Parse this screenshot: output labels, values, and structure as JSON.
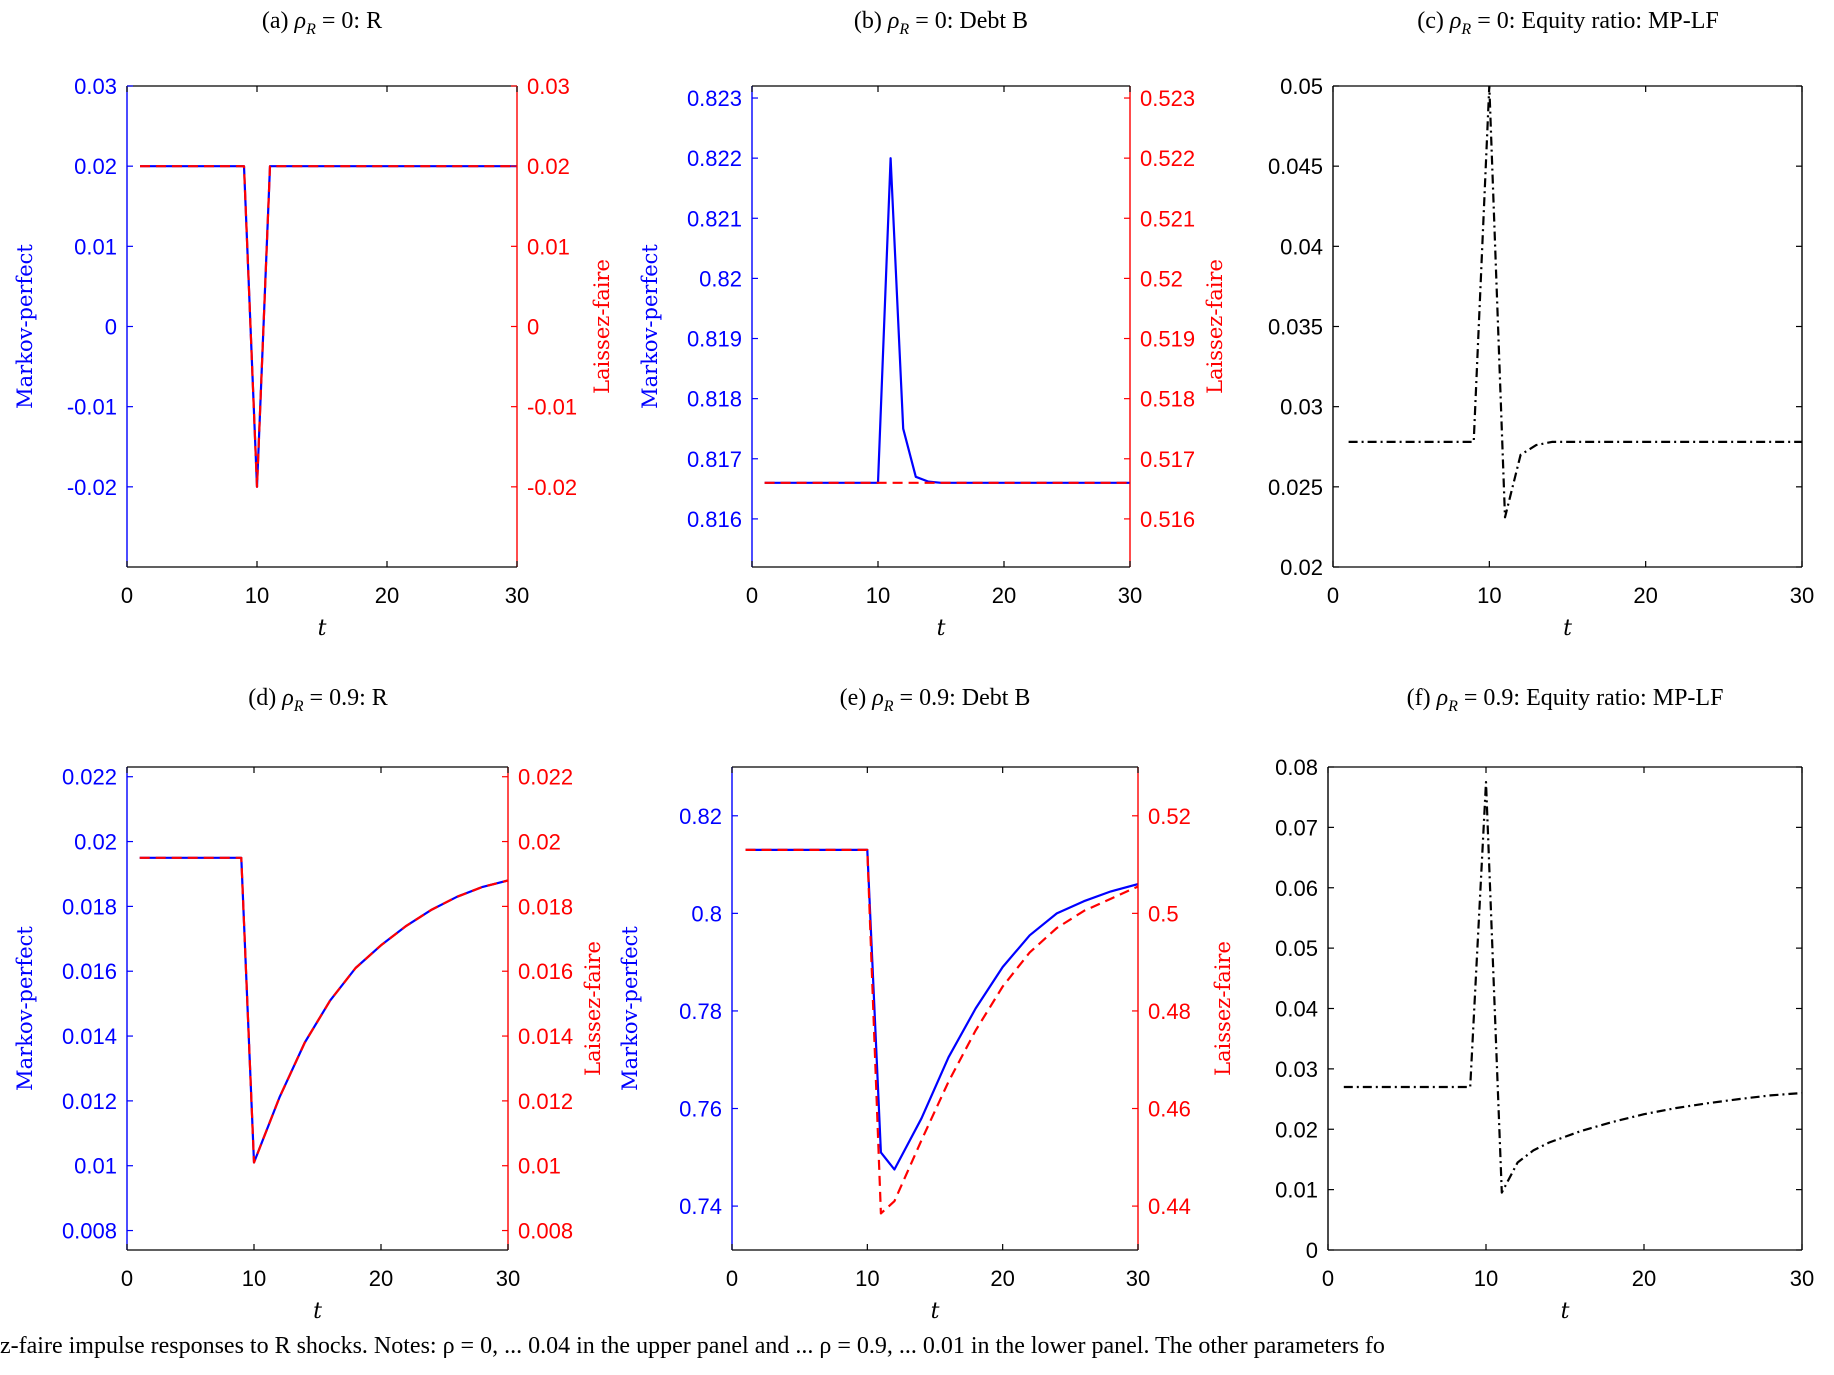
{
  "figure": {
    "caption_fragment": "z-faire impulse responses to R shocks. Notes: ρ = 0, ... 0.04 in the upper panel and ... ρ = 0.9, ... 0.01 in the lower panel. The other parameters fo"
  },
  "colors": {
    "markov_perfect": "#0000ff",
    "laissez_faire": "#ff0000",
    "difference": "#000000",
    "axis": "#000000"
  },
  "chart_data": [
    {
      "panel": "a",
      "type": "line",
      "title": "(a) ρR = 0: R",
      "xlabel": "t",
      "ylabel_left": "Markov-perfect",
      "ylabel_right": "Laissez-faire",
      "xlim": [
        0,
        30
      ],
      "ylim_left": [
        -0.03,
        0.03
      ],
      "ylim_right": [
        -0.03,
        0.03
      ],
      "xticks": [
        0,
        10,
        20,
        30
      ],
      "yticks_left": [
        -0.02,
        -0.01,
        0,
        0.01,
        0.02,
        0.03
      ],
      "yticks_left_labels": [
        "-0.02",
        "-0.01",
        "0",
        "0.01",
        "0.02",
        "0.03"
      ],
      "yticks_right": [
        -0.02,
        -0.01,
        0,
        0.01,
        0.02,
        0.03
      ],
      "yticks_right_labels": [
        "-0.02",
        "-0.01",
        "0",
        "0.01",
        "0.02",
        "0.03"
      ],
      "series": [
        {
          "axis": "left",
          "style": "solid",
          "color": "#0000ff",
          "x": [
            1,
            9,
            10,
            11,
            30
          ],
          "y": [
            0.02,
            0.02,
            -0.02,
            0.02,
            0.02
          ]
        },
        {
          "axis": "right",
          "style": "dashed",
          "color": "#ff0000",
          "x": [
            1,
            9,
            10,
            11,
            30
          ],
          "y": [
            0.02,
            0.02,
            -0.02,
            0.02,
            0.02
          ]
        }
      ]
    },
    {
      "panel": "b",
      "type": "line",
      "title": "(b) ρR = 0: Debt B",
      "xlabel": "t",
      "ylabel_left": "Markov-perfect",
      "ylabel_right": "Laissez-faire",
      "xlim": [
        0,
        30
      ],
      "ylim_left": [
        0.8152,
        0.8232
      ],
      "ylim_right": [
        0.5152,
        0.5232
      ],
      "xticks": [
        0,
        10,
        20,
        30
      ],
      "yticks_left": [
        0.816,
        0.817,
        0.818,
        0.819,
        0.82,
        0.821,
        0.822,
        0.823
      ],
      "yticks_left_labels": [
        "0.816",
        "0.817",
        "0.818",
        "0.819",
        "0.82",
        "0.821",
        "0.822",
        "0.823"
      ],
      "yticks_right": [
        0.516,
        0.517,
        0.518,
        0.519,
        0.52,
        0.521,
        0.522,
        0.523
      ],
      "yticks_right_labels": [
        "0.516",
        "0.517",
        "0.518",
        "0.519",
        "0.52",
        "0.521",
        "0.522",
        "0.523"
      ],
      "series": [
        {
          "axis": "left",
          "style": "solid",
          "color": "#0000ff",
          "x": [
            1,
            10,
            11,
            12,
            13,
            14,
            15,
            30
          ],
          "y": [
            0.8166,
            0.8166,
            0.822,
            0.8175,
            0.8167,
            0.81662,
            0.8166,
            0.8166
          ]
        },
        {
          "axis": "right",
          "style": "dashed",
          "color": "#ff0000",
          "x": [
            1,
            30
          ],
          "y": [
            0.5166,
            0.5166
          ]
        }
      ]
    },
    {
      "panel": "c",
      "type": "line",
      "title": "(c) ρR = 0: Equity ratio: MP-LF",
      "xlabel": "t",
      "ylabel_left": "",
      "ylabel_right": "",
      "xlim": [
        0,
        30
      ],
      "ylim_left": [
        0.02,
        0.05
      ],
      "xticks": [
        0,
        10,
        20,
        30
      ],
      "yticks_left": [
        0.02,
        0.025,
        0.03,
        0.035,
        0.04,
        0.045,
        0.05
      ],
      "yticks_left_labels": [
        "0.02",
        "0.025",
        "0.03",
        "0.035",
        "0.04",
        "0.045",
        "0.05"
      ],
      "series": [
        {
          "axis": "left",
          "style": "dashdot",
          "color": "#000000",
          "x": [
            1,
            9,
            10,
            11,
            12,
            13,
            14,
            30
          ],
          "y": [
            0.0278,
            0.0278,
            0.05,
            0.0231,
            0.027,
            0.0276,
            0.0278,
            0.0278
          ]
        }
      ]
    },
    {
      "panel": "d",
      "type": "line",
      "title": "(d) ρR = 0.9: R",
      "xlabel": "t",
      "ylabel_left": "Markov-perfect",
      "ylabel_right": "Laissez-faire",
      "xlim": [
        0,
        30
      ],
      "ylim_left": [
        0.0074,
        0.0223
      ],
      "ylim_right": [
        0.0074,
        0.0223
      ],
      "xticks": [
        0,
        10,
        20,
        30
      ],
      "yticks_left": [
        0.008,
        0.01,
        0.012,
        0.014,
        0.016,
        0.018,
        0.02,
        0.022
      ],
      "yticks_left_labels": [
        "0.008",
        "0.01",
        "0.012",
        "0.014",
        "0.016",
        "0.018",
        "0.02",
        "0.022"
      ],
      "yticks_right": [
        0.008,
        0.01,
        0.012,
        0.014,
        0.016,
        0.018,
        0.02,
        0.022
      ],
      "yticks_right_labels": [
        "0.008",
        "0.01",
        "0.012",
        "0.014",
        "0.016",
        "0.018",
        "0.02",
        "0.022"
      ],
      "series": [
        {
          "axis": "left",
          "style": "solid",
          "color": "#0000ff",
          "x": [
            1,
            9,
            10,
            12,
            14,
            16,
            18,
            20,
            22,
            24,
            26,
            28,
            30
          ],
          "y": [
            0.0195,
            0.0195,
            0.0101,
            0.0121,
            0.0138,
            0.0151,
            0.0161,
            0.0168,
            0.0174,
            0.0179,
            0.0183,
            0.0186,
            0.0188
          ]
        },
        {
          "axis": "right",
          "style": "dashed",
          "color": "#ff0000",
          "x": [
            1,
            9,
            10,
            12,
            14,
            16,
            18,
            20,
            22,
            24,
            26,
            28,
            30
          ],
          "y": [
            0.0195,
            0.0195,
            0.0101,
            0.0121,
            0.0138,
            0.0151,
            0.0161,
            0.0168,
            0.0174,
            0.0179,
            0.0183,
            0.0186,
            0.0188
          ]
        }
      ]
    },
    {
      "panel": "e",
      "type": "line",
      "title": "(e) ρR = 0.9: Debt B",
      "xlabel": "t",
      "ylabel_left": "Markov-perfect",
      "ylabel_right": "Laissez-faire",
      "xlim": [
        0,
        30
      ],
      "ylim_left": [
        0.731,
        0.83
      ],
      "ylim_right": [
        0.431,
        0.53
      ],
      "xticks": [
        0,
        10,
        20,
        30
      ],
      "yticks_left": [
        0.74,
        0.76,
        0.78,
        0.8,
        0.82
      ],
      "yticks_left_labels": [
        "0.74",
        "0.76",
        "0.78",
        "0.8",
        "0.82"
      ],
      "yticks_right": [
        0.44,
        0.46,
        0.48,
        0.5,
        0.52
      ],
      "yticks_right_labels": [
        "0.44",
        "0.46",
        "0.48",
        "0.5",
        "0.52"
      ],
      "series": [
        {
          "axis": "left",
          "style": "solid",
          "color": "#0000ff",
          "x": [
            1,
            10,
            11,
            12,
            14,
            16,
            18,
            20,
            22,
            24,
            26,
            28,
            30
          ],
          "y": [
            0.813,
            0.813,
            0.751,
            0.7475,
            0.758,
            0.7705,
            0.7805,
            0.789,
            0.7955,
            0.8,
            0.8025,
            0.8045,
            0.806
          ]
        },
        {
          "axis": "right",
          "style": "dashed",
          "color": "#ff0000",
          "x": [
            1,
            10,
            11,
            12,
            14,
            16,
            18,
            20,
            22,
            24,
            26,
            28,
            30
          ],
          "y": [
            0.513,
            0.513,
            0.4385,
            0.441,
            0.4535,
            0.4655,
            0.476,
            0.485,
            0.492,
            0.497,
            0.5005,
            0.503,
            0.5055
          ]
        }
      ]
    },
    {
      "panel": "f",
      "type": "line",
      "title": "(f) ρR = 0.9: Equity ratio: MP-LF",
      "xlabel": "t",
      "ylabel_left": "",
      "ylabel_right": "",
      "xlim": [
        0,
        30
      ],
      "ylim_left": [
        0,
        0.08
      ],
      "xticks": [
        0,
        10,
        20,
        30
      ],
      "yticks_left": [
        0,
        0.01,
        0.02,
        0.03,
        0.04,
        0.05,
        0.06,
        0.07,
        0.08
      ],
      "yticks_left_labels": [
        "0",
        "0.01",
        "0.02",
        "0.03",
        "0.04",
        "0.05",
        "0.06",
        "0.07",
        "0.08"
      ],
      "series": [
        {
          "axis": "left",
          "style": "dashdot",
          "color": "#000000",
          "x": [
            1,
            9,
            10,
            11,
            12,
            13,
            14,
            16,
            18,
            20,
            22,
            24,
            26,
            28,
            30
          ],
          "y": [
            0.027,
            0.027,
            0.0775,
            0.0095,
            0.0145,
            0.0165,
            0.0178,
            0.0197,
            0.0212,
            0.0225,
            0.0235,
            0.0243,
            0.025,
            0.0256,
            0.026
          ]
        }
      ]
    }
  ]
}
